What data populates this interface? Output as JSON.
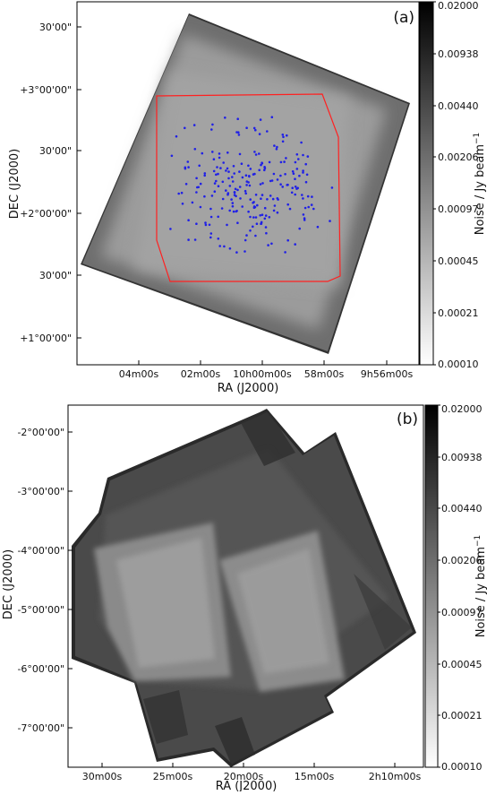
{
  "panels": [
    {
      "label": "(a)",
      "xlabel": "RA (J2000)",
      "ylabel": "DEC (J2000)",
      "x_ticks": [
        "04m00s",
        "02m00s",
        "10h00m00s",
        "58m00s",
        "9h56m00s"
      ],
      "y_ticks": [
        "30'00\"",
        "+3°00'00\"",
        "30'00\"",
        "+2°00'00\"",
        "30'00\"",
        "+1°00'00\""
      ],
      "colorbar_label": "Noise / Jy beam",
      "colorbar_label_sup": "−1",
      "colorbar_ticks": [
        "0.02000",
        "0.00938",
        "0.00440",
        "0.00206",
        "0.00097",
        "0.00045",
        "0.00021",
        "0.00010"
      ],
      "colors": {
        "outline": "#ff2020",
        "points": "#2020e6",
        "map_light": "#9a9a9a",
        "map_dark": "#555555"
      }
    },
    {
      "label": "(b)",
      "xlabel": "RA (J2000)",
      "ylabel": "DEC (J2000)",
      "x_ticks": [
        "30m00s",
        "25m00s",
        "20m00s",
        "15m00s",
        "2h10m00s"
      ],
      "y_ticks": [
        "-2°00'00\"",
        "-3°00'00\"",
        "-4°00'00\"",
        "-5°00'00\"",
        "-6°00'00\"",
        "-7°00'00\""
      ],
      "colorbar_label": "Noise / Jy beam",
      "colorbar_label_sup": "−1",
      "colorbar_ticks": [
        "0.02000",
        "0.00938",
        "0.00440",
        "0.00206",
        "0.00097",
        "0.00045",
        "0.00021",
        "0.00010"
      ]
    }
  ],
  "chart_data": [
    {
      "type": "heatmap",
      "colorbar": {
        "scale": "log",
        "range": [
          0.0001,
          0.02
        ],
        "ticks": [
          0.02,
          0.00938,
          0.0044,
          0.00206,
          0.00097,
          0.00045,
          0.00021,
          0.0001
        ]
      },
      "overlay": "scatter of source positions inside red polygon outline"
    },
    {
      "type": "heatmap",
      "colorbar": {
        "scale": "log",
        "range": [
          0.0001,
          0.02
        ],
        "ticks": [
          0.02,
          0.00938,
          0.0044,
          0.00206,
          0.00097,
          0.00045,
          0.00021,
          0.0001
        ]
      }
    }
  ]
}
